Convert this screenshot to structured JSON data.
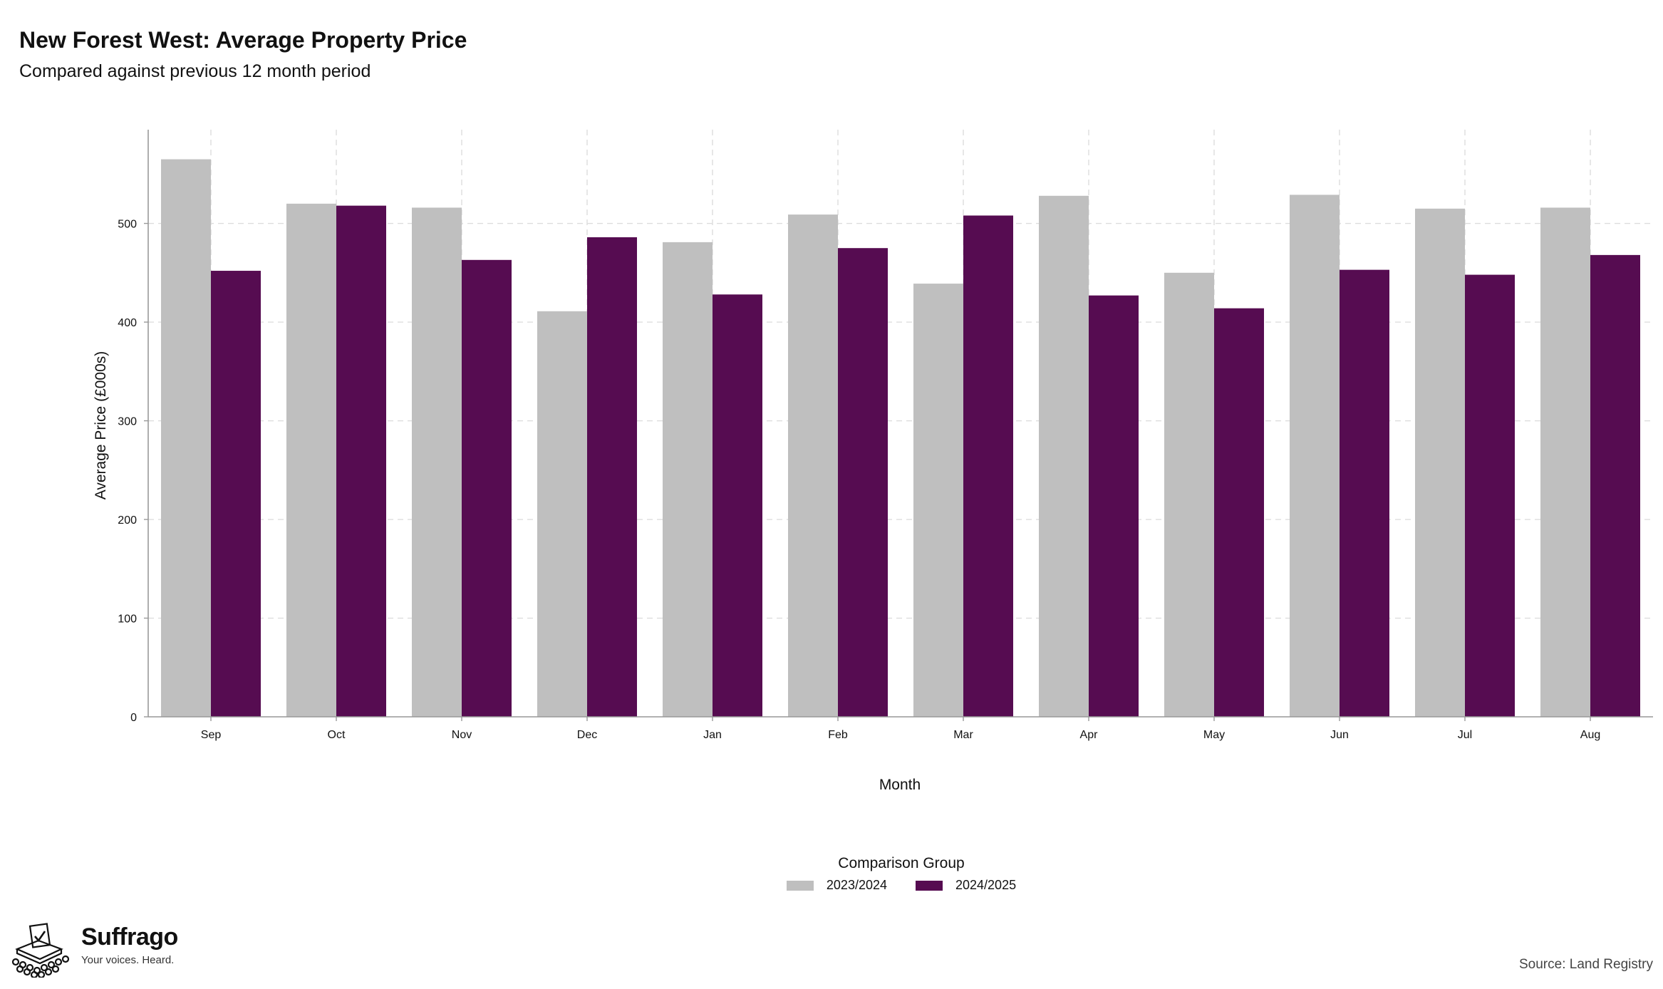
{
  "header": {
    "title": "New Forest West: Average Property Price",
    "subtitle": "Compared against previous 12 month period"
  },
  "chart_data": {
    "type": "bar",
    "title": "New Forest West: Average Property Price",
    "subtitle": "Compared against previous 12 month period",
    "xlabel": "Month",
    "ylabel": "Average Price (£000s)",
    "ylim": [
      0,
      595
    ],
    "yticks": [
      0,
      100,
      200,
      300,
      400,
      500
    ],
    "grid": true,
    "legend_position": "bottom",
    "legend_title": "Comparison Group",
    "categories": [
      "Sep",
      "Oct",
      "Nov",
      "Dec",
      "Jan",
      "Feb",
      "Mar",
      "Apr",
      "May",
      "Jun",
      "Jul",
      "Aug"
    ],
    "series": [
      {
        "name": "2023/2024",
        "color": "#bfbfbf",
        "values": [
          565,
          520,
          516,
          411,
          481,
          509,
          439,
          528,
          450,
          529,
          515,
          516
        ]
      },
      {
        "name": "2024/2025",
        "color": "#560c51",
        "values": [
          452,
          518,
          463,
          486,
          428,
          475,
          508,
          427,
          414,
          453,
          448,
          468
        ]
      }
    ]
  },
  "footer": {
    "brand_name": "Suffrago",
    "brand_tagline": "Your voices. Heard.",
    "source": "Source: Land Registry",
    "logo_icon": "ballot-box-icon"
  }
}
